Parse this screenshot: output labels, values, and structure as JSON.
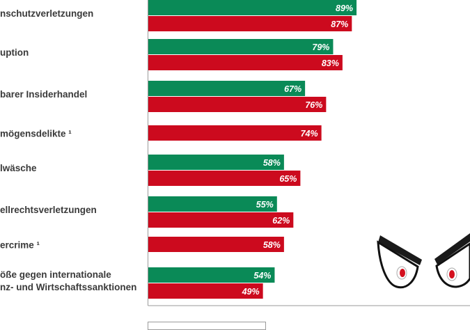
{
  "chart_data": {
    "type": "bar",
    "orientation": "horizontal",
    "categories": [
      "nschutzverletzungen",
      "uption",
      "barer Insiderhandel",
      "mögensdelikte ¹",
      "lwäsche",
      "ellrechtsverletzungen",
      "ercrime ¹",
      "ößе gegen internationale|nz- und Wirtschaftssanktionen"
    ],
    "series": [
      {
        "color": "#0a8a57",
        "values": [
          89,
          79,
          67,
          null,
          58,
          55,
          null,
          54
        ]
      },
      {
        "color": "#cc0a1e",
        "values": [
          87,
          83,
          76,
          74,
          65,
          62,
          58,
          49
        ]
      }
    ],
    "value_suffix": "%",
    "xlim": [
      0,
      100
    ],
    "grid": false
  }
}
